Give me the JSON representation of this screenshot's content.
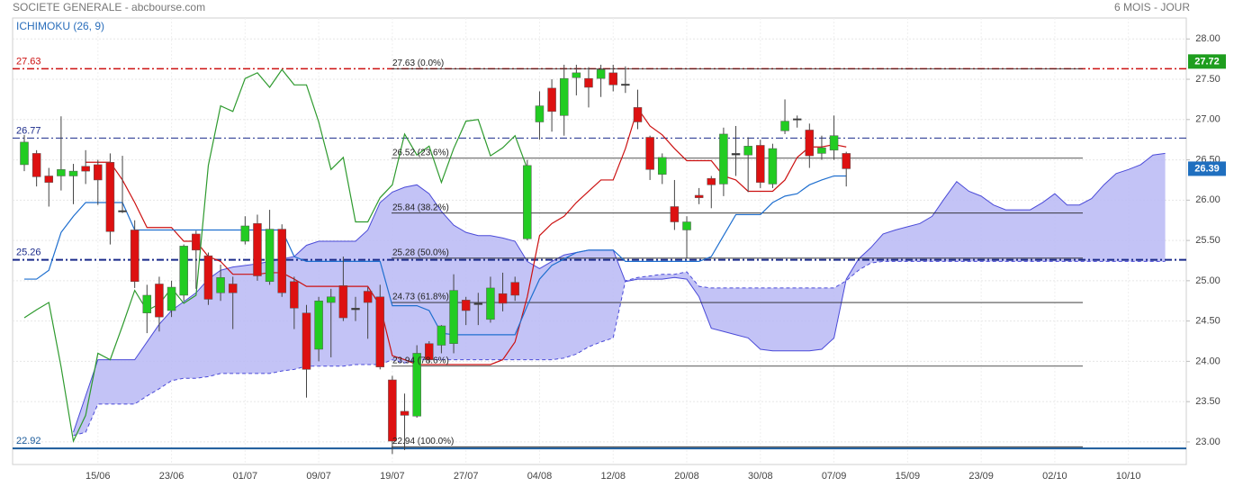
{
  "chart_data": {
    "type": "candlestick",
    "title": "SOCIETE GENERALE - abcbourse.com",
    "period": "6 MOIS - JOUR",
    "indicator": "ICHIMOKU (26, 9)",
    "ylim": [
      22.72,
      28.26
    ],
    "yticks": [
      {
        "value": 23,
        "label": "23.00"
      },
      {
        "value": 23.5,
        "label": "23.50"
      },
      {
        "value": 24,
        "label": "24.00"
      },
      {
        "value": 24.5,
        "label": "24.50"
      },
      {
        "value": 25,
        "label": "25.00"
      },
      {
        "value": 25.5,
        "label": "25.50"
      },
      {
        "value": 26,
        "label": "26.00"
      },
      {
        "value": 26.5,
        "label": "26.50"
      },
      {
        "value": 27,
        "label": "27.00"
      },
      {
        "value": 27.5,
        "label": "27.50"
      },
      {
        "value": 28,
        "label": "28.00"
      }
    ],
    "grid": true,
    "categories": [
      null,
      null,
      null,
      null,
      null,
      null,
      "15/06",
      null,
      null,
      null,
      null,
      null,
      "23/06",
      null,
      null,
      null,
      null,
      null,
      "01/07",
      null,
      null,
      null,
      null,
      null,
      "09/07",
      null,
      null,
      null,
      null,
      null,
      "19/07",
      null,
      null,
      null,
      null,
      null,
      "27/07",
      null,
      null,
      null,
      null,
      null,
      "04/08",
      null,
      null,
      null,
      null,
      null,
      "12/08",
      null,
      null,
      null,
      null,
      null,
      "20/08",
      null,
      null,
      null,
      null,
      null,
      "30/08",
      null,
      null,
      null,
      null,
      null,
      "07/09",
      null,
      null,
      null,
      null,
      null,
      "15/09",
      null,
      null,
      null,
      null,
      null,
      "23/09",
      null,
      null,
      null,
      null,
      null,
      "02/10",
      null,
      null,
      null,
      null,
      null,
      "10/10",
      null,
      null,
      null,
      null
    ],
    "candles": {
      "up_color": "#22cc22",
      "down_color": "#dd1111",
      "doji_color": "#333333",
      "open": [
        26.44,
        26.58,
        26.3,
        26.3,
        26.3,
        26.42,
        26.44,
        26.47,
        25.87,
        25.63,
        24.6,
        24.96,
        24.63,
        24.82,
        25.58,
        25.31,
        24.85,
        24.96,
        25.49,
        25.71,
        24.99,
        25.64,
        24.99,
        24.6,
        24.15,
        24.73,
        24.94,
        24.66,
        24.87,
        24.8,
        23.77,
        23.38,
        23.32,
        24.22,
        24.2,
        24.22,
        24.76,
        24.72,
        24.52,
        24.84,
        24.98,
        25.52,
        26.97,
        27.39,
        27.05,
        27.52,
        27.51,
        27.51,
        27.58,
        27.44,
        27.15,
        26.78,
        26.32,
        25.92,
        25.63,
        26.06,
        26.27,
        26.2,
        26.58,
        26.56,
        26.68,
        26.2,
        26.86,
        27.01,
        26.87,
        26.58,
        26.62,
        26.58,
        null,
        null,
        null,
        null,
        null,
        null,
        null,
        null,
        null,
        null,
        null,
        null,
        null,
        null,
        null,
        null,
        null,
        null,
        null,
        null,
        null,
        null,
        null,
        null,
        null,
        null,
        null
      ],
      "high": [
        26.81,
        26.62,
        26.4,
        27.04,
        26.45,
        26.62,
        26.5,
        26.58,
        26.55,
        25.75,
        24.95,
        25.05,
        25.0,
        25.45,
        25.62,
        25.35,
        25.2,
        25.05,
        25.8,
        25.82,
        25.88,
        25.7,
        25.05,
        24.7,
        24.8,
        24.9,
        25.3,
        24.8,
        24.92,
        24.95,
        23.82,
        23.6,
        24.2,
        24.25,
        24.45,
        25.08,
        24.8,
        24.85,
        25.05,
        25.1,
        25.05,
        26.5,
        27.35,
        27.5,
        27.68,
        27.68,
        27.65,
        27.68,
        27.68,
        27.66,
        27.37,
        26.8,
        26.58,
        26.25,
        25.8,
        26.15,
        26.3,
        26.9,
        26.92,
        26.78,
        26.75,
        26.7,
        27.25,
        27.05,
        26.95,
        26.8,
        27.05,
        26.6,
        null,
        null,
        null,
        null,
        null,
        null,
        null,
        null,
        null,
        null,
        null,
        null,
        null,
        null,
        null,
        null,
        null,
        null,
        null,
        null,
        null,
        null,
        null,
        null,
        null,
        null,
        null
      ],
      "low": [
        26.36,
        26.17,
        25.92,
        26.12,
        25.95,
        26.2,
        25.94,
        25.45,
        25.84,
        24.91,
        24.35,
        24.37,
        24.55,
        24.75,
        24.9,
        24.7,
        24.75,
        24.4,
        25.45,
        25.0,
        24.95,
        24.8,
        24.4,
        23.55,
        24.0,
        24.05,
        24.5,
        24.5,
        24.28,
        23.9,
        22.85,
        22.9,
        23.3,
        23.98,
        24.1,
        24.1,
        24.45,
        24.45,
        24.48,
        24.62,
        24.75,
        25.5,
        26.75,
        26.85,
        26.8,
        27.3,
        27.15,
        27.28,
        27.35,
        27.33,
        26.88,
        26.25,
        26.2,
        25.63,
        25.28,
        25.95,
        25.9,
        26.05,
        26.3,
        26.1,
        26.15,
        26.15,
        26.82,
        26.9,
        26.4,
        26.5,
        26.5,
        26.17,
        null,
        null,
        null,
        null,
        null,
        null,
        null,
        null,
        null,
        null,
        null,
        null,
        null,
        null,
        null,
        null,
        null,
        null,
        null,
        null,
        null,
        null,
        null,
        null,
        null,
        null,
        null
      ],
      "close": [
        26.72,
        26.29,
        26.22,
        26.38,
        26.36,
        26.36,
        26.25,
        25.61,
        25.86,
        24.99,
        24.82,
        24.55,
        24.92,
        25.43,
        25.38,
        24.77,
        25.04,
        24.85,
        25.68,
        25.06,
        25.64,
        24.85,
        24.66,
        23.9,
        24.75,
        24.8,
        24.54,
        24.64,
        24.73,
        23.93,
        23.01,
        23.33,
        24.1,
        24.02,
        24.44,
        24.88,
        24.63,
        24.71,
        24.91,
        24.72,
        24.82,
        26.43,
        27.17,
        27.1,
        27.51,
        27.58,
        27.4,
        27.62,
        27.43,
        27.43,
        26.97,
        26.38,
        26.53,
        25.73,
        25.73,
        26.03,
        26.19,
        26.82,
        26.56,
        26.67,
        26.22,
        26.64,
        26.98,
        27.0,
        26.55,
        26.65,
        26.8,
        26.39,
        null,
        null,
        null,
        null,
        null,
        null,
        null,
        null,
        null,
        null,
        null,
        null,
        null,
        null,
        null,
        null,
        null,
        null,
        null,
        null,
        null,
        null,
        null,
        null,
        null,
        null,
        null
      ]
    },
    "lines": [
      {
        "color": "#cc1111",
        "values": [
          null,
          null,
          null,
          null,
          null,
          26.47,
          26.47,
          26.47,
          26.25,
          25.97,
          25.66,
          25.66,
          25.66,
          25.49,
          25.49,
          25.3,
          25.24,
          25.08,
          25.08,
          25.08,
          25.1,
          25.1,
          25.02,
          24.93,
          24.93,
          24.93,
          24.93,
          24.93,
          24.93,
          24.69,
          24.07,
          24.02,
          23.96,
          23.96,
          23.96,
          23.96,
          23.96,
          23.96,
          23.96,
          24.02,
          24.24,
          24.8,
          25.56,
          25.71,
          25.8,
          25.97,
          26.11,
          26.25,
          26.25,
          26.64,
          27.14,
          26.92,
          26.81,
          26.64,
          26.49,
          26.49,
          26.49,
          26.3,
          26.25,
          26.11,
          26.11,
          26.11,
          26.25,
          26.53,
          26.66,
          26.66,
          26.69,
          26.66,
          null,
          null,
          null,
          null,
          null,
          null,
          null,
          null,
          null,
          null,
          null,
          null,
          null,
          null,
          null,
          null,
          null,
          null,
          null,
          null,
          null,
          null,
          null,
          null,
          null,
          null,
          null
        ]
      },
      {
        "color": "#1f6fcf",
        "values": [
          25.02,
          25.02,
          25.13,
          25.6,
          25.8,
          25.97,
          25.97,
          25.97,
          25.97,
          25.63,
          25.63,
          25.63,
          25.63,
          25.63,
          25.63,
          25.63,
          25.63,
          25.63,
          25.63,
          25.63,
          25.63,
          25.63,
          25.3,
          25.24,
          25.24,
          25.24,
          25.24,
          25.24,
          25.24,
          25.24,
          24.69,
          24.69,
          24.69,
          24.63,
          24.35,
          24.33,
          24.33,
          24.33,
          24.33,
          24.33,
          24.33,
          24.69,
          25.02,
          25.19,
          25.27,
          25.35,
          25.38,
          25.38,
          25.38,
          25.24,
          25.24,
          25.24,
          25.24,
          25.24,
          25.24,
          25.24,
          25.3,
          25.56,
          25.82,
          25.82,
          25.82,
          25.97,
          26.05,
          26.08,
          26.19,
          26.25,
          26.3,
          26.3,
          null,
          null,
          null,
          null,
          null,
          null,
          null,
          null,
          null,
          null,
          null,
          null,
          null,
          null,
          null,
          null,
          null,
          null,
          null,
          null,
          null,
          null,
          null,
          null,
          null,
          null,
          null
        ]
      },
      {
        "color": "#2e9a2e",
        "values": [
          24.54,
          24.64,
          24.73,
          23.93,
          23.01,
          23.33,
          24.1,
          24.02,
          24.44,
          24.88,
          24.63,
          24.71,
          24.91,
          24.72,
          24.82,
          26.43,
          27.17,
          27.1,
          27.51,
          27.58,
          27.4,
          27.62,
          27.43,
          27.43,
          26.97,
          26.38,
          26.53,
          25.73,
          25.73,
          26.03,
          26.19,
          26.82,
          26.56,
          26.67,
          26.22,
          26.64,
          26.98,
          27.0,
          26.55,
          26.65,
          26.8,
          26.39,
          null,
          null,
          null,
          null,
          null,
          null,
          null,
          null,
          null,
          null,
          null,
          null,
          null,
          null,
          null,
          null,
          null,
          null,
          null,
          null,
          null,
          null,
          null,
          null,
          null,
          null,
          null,
          null,
          null,
          null,
          null,
          null,
          null,
          null,
          null,
          null,
          null,
          null,
          null,
          null,
          null,
          null,
          null,
          null,
          null,
          null,
          null,
          null,
          null,
          null,
          null,
          null,
          null
        ]
      }
    ],
    "cloud": {
      "fill": "#b8b8f4",
      "edge_color": "#4a4ad8",
      "a": [
        null,
        null,
        null,
        null,
        23.12,
        23.57,
        24.02,
        24.02,
        24.02,
        24.02,
        24.24,
        24.46,
        24.63,
        24.74,
        24.85,
        25.02,
        25.13,
        25.17,
        25.19,
        25.21,
        25.24,
        25.27,
        25.3,
        25.44,
        25.49,
        25.49,
        25.49,
        25.49,
        25.63,
        25.97,
        26.1,
        26.16,
        26.19,
        26.08,
        25.86,
        25.69,
        25.6,
        25.56,
        25.56,
        25.53,
        25.49,
        25.24,
        25.15,
        25.24,
        25.32,
        25.35,
        25.38,
        25.38,
        25.38,
        24.99,
        25.02,
        25.02,
        25.02,
        25.04,
        25.02,
        24.8,
        24.41,
        24.37,
        24.33,
        24.29,
        24.15,
        24.13,
        24.13,
        24.13,
        24.13,
        24.15,
        24.29,
        25.02,
        25.27,
        25.41,
        25.58,
        25.63,
        25.67,
        25.71,
        25.8,
        26.02,
        26.23,
        26.11,
        26.05,
        25.94,
        25.88,
        25.88,
        25.88,
        25.97,
        26.08,
        25.94,
        25.94,
        26.02,
        26.19,
        26.33,
        26.38,
        26.44,
        26.56,
        26.58,
        null
      ],
      "b": [
        null,
        null,
        null,
        null,
        23.08,
        23.12,
        23.47,
        23.47,
        23.47,
        23.47,
        23.57,
        23.66,
        23.76,
        23.79,
        23.79,
        23.81,
        23.85,
        23.85,
        23.85,
        23.85,
        23.85,
        23.88,
        23.9,
        23.94,
        23.94,
        23.94,
        23.94,
        23.96,
        23.96,
        23.96,
        24.02,
        23.98,
        24.02,
        24.02,
        24.02,
        24.02,
        24.02,
        24.02,
        24.02,
        24.02,
        24.02,
        24.02,
        24.02,
        24.02,
        24.04,
        24.09,
        24.18,
        24.24,
        24.29,
        25.0,
        25.04,
        25.06,
        25.08,
        25.08,
        25.11,
        24.93,
        24.91,
        24.91,
        24.91,
        24.91,
        24.91,
        24.91,
        24.91,
        24.91,
        24.91,
        24.91,
        24.91,
        25.0,
        25.13,
        25.22,
        25.24,
        25.24,
        25.24,
        25.24,
        25.24,
        25.24,
        25.24,
        25.24,
        25.24,
        25.24,
        25.24,
        25.24,
        25.24,
        25.24,
        25.24,
        25.24,
        25.24,
        25.24,
        25.24,
        25.24,
        25.24,
        25.24,
        25.24,
        25.24,
        null
      ]
    },
    "hlines": [
      {
        "value": 27.63,
        "color": "#cc1111",
        "style": "dashdot",
        "width": 1.5
      },
      {
        "value": 26.77,
        "color": "#1a2a8a",
        "style": "dashdot",
        "width": 1
      },
      {
        "value": 25.26,
        "color": "#1a2a8a",
        "style": "dashdot",
        "width": 2
      },
      {
        "value": 22.92,
        "color": "#1a5a9a",
        "style": "solid",
        "width": 2
      }
    ],
    "fibonacci": {
      "color": "#222222",
      "levels": [
        {
          "value": 27.63,
          "label": "27.63 (0.0%)"
        },
        {
          "value": 26.52,
          "label": "26.52 (23.6%)"
        },
        {
          "value": 25.84,
          "label": "25.84 (38.2%)"
        },
        {
          "value": 25.28,
          "label": "25.28 (50.0%)"
        },
        {
          "value": 24.73,
          "label": "24.73 (61.8%)"
        },
        {
          "value": 23.94,
          "label": "23.94 (78.6%)"
        },
        {
          "value": 22.94,
          "label": "22.94 (100.0%)"
        }
      ]
    },
    "badges": [
      {
        "value": 27.72,
        "color": "#1e9e1e"
      },
      {
        "value": 26.39,
        "color": "#1f6fbf"
      }
    ]
  }
}
